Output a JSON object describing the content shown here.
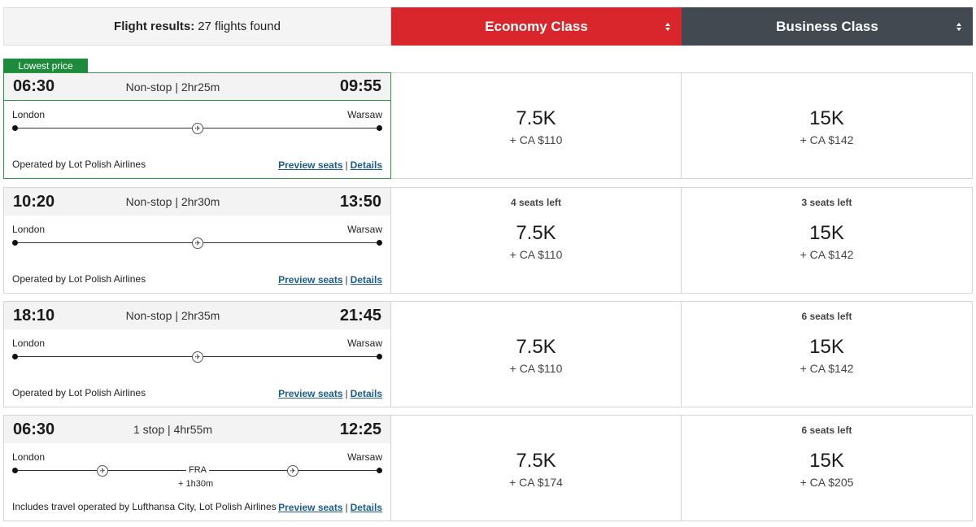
{
  "header": {
    "results_label": "Flight results:",
    "results_count": "27 flights found",
    "economy_label": "Economy Class",
    "business_label": "Business Class"
  },
  "badge": "Lowest price",
  "links": {
    "preview": "Preview seats",
    "separator": "|",
    "details": "Details"
  },
  "flights": [
    {
      "depart": "06:30",
      "arrive": "09:55",
      "duration": "Non-stop | 2hr25m",
      "from": "London",
      "to": "Warsaw",
      "operator": "Operated by Lot Polish Airlines",
      "economy": {
        "seats": "",
        "points": "7.5K",
        "cash": "+ CA $110"
      },
      "business": {
        "seats": "",
        "points": "15K",
        "cash": "+ CA $142"
      }
    },
    {
      "depart": "10:20",
      "arrive": "13:50",
      "duration": "Non-stop | 2hr30m",
      "from": "London",
      "to": "Warsaw",
      "operator": "Operated by Lot Polish Airlines",
      "economy": {
        "seats": "4 seats left",
        "points": "7.5K",
        "cash": "+ CA $110"
      },
      "business": {
        "seats": "3 seats left",
        "points": "15K",
        "cash": "+ CA $142"
      }
    },
    {
      "depart": "18:10",
      "arrive": "21:45",
      "duration": "Non-stop | 2hr35m",
      "from": "London",
      "to": "Warsaw",
      "operator": "Operated by Lot Polish Airlines",
      "economy": {
        "seats": "",
        "points": "7.5K",
        "cash": "+ CA $110"
      },
      "business": {
        "seats": "6 seats left",
        "points": "15K",
        "cash": "+ CA $142"
      }
    },
    {
      "depart": "06:30",
      "arrive": "12:25",
      "duration": "1 stop | 4hr55m",
      "from": "London",
      "to": "Warsaw",
      "stop": "FRA",
      "layover": "+ 1h30m",
      "operator": "Includes travel operated by Lufthansa City, Lot Polish Airlines",
      "economy": {
        "seats": "",
        "points": "7.5K",
        "cash": "+ CA $174"
      },
      "business": {
        "seats": "6 seats left",
        "points": "15K",
        "cash": "+ CA $205"
      }
    }
  ],
  "colors": {
    "economy": "#d9262c",
    "business": "#434950",
    "lowest": "#1e8a3c",
    "link": "#1c5c8c"
  }
}
